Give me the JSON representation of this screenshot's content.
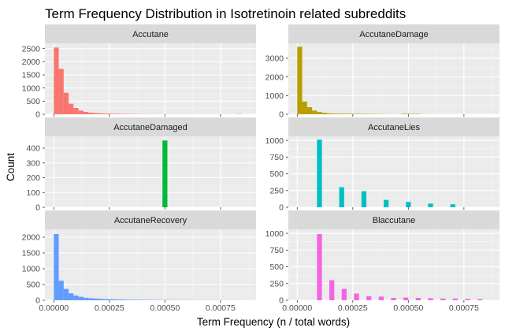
{
  "chart_data": {
    "type": "histogram-facets",
    "title": "Term Frequency Distribution in Isotretinoin related subreddits",
    "xlabel": "Term Frequency (n / total words)",
    "ylabel": "Count",
    "xlim": [
      -4e-05,
      0.00091
    ],
    "x_ticks": [
      0.0,
      0.00025,
      0.0005,
      0.00075
    ],
    "x_tick_labels": [
      "0.00000",
      "0.00025",
      "0.00050",
      "0.00075"
    ],
    "bin_width": 2.22e-05,
    "grid": true,
    "background": "#EBEBEB",
    "strip_background": "#D9D9D9",
    "facets": [
      {
        "name": "Accutane",
        "color": "#F8766D",
        "ylim": [
          0,
          2700
        ],
        "y_ticks": [
          0,
          500,
          1000,
          1500,
          2000,
          2500
        ],
        "bins": [
          {
            "x": 1.11e-05,
            "count": 2540
          },
          {
            "x": 3.33e-05,
            "count": 1730
          },
          {
            "x": 5.56e-05,
            "count": 820
          },
          {
            "x": 7.78e-05,
            "count": 400
          },
          {
            "x": 0.0001,
            "count": 240
          },
          {
            "x": 0.0001222,
            "count": 140
          },
          {
            "x": 0.0001444,
            "count": 90
          },
          {
            "x": 0.0001667,
            "count": 60
          },
          {
            "x": 0.0001889,
            "count": 45
          },
          {
            "x": 0.0002111,
            "count": 35
          },
          {
            "x": 0.0002333,
            "count": 28
          },
          {
            "x": 0.0002556,
            "count": 22
          },
          {
            "x": 0.0002778,
            "count": 18
          },
          {
            "x": 0.0003,
            "count": 15
          },
          {
            "x": 0.0003222,
            "count": 12
          },
          {
            "x": 0.0003444,
            "count": 10
          },
          {
            "x": 0.0003667,
            "count": 9
          },
          {
            "x": 0.0003889,
            "count": 8
          },
          {
            "x": 0.0004111,
            "count": 7
          },
          {
            "x": 0.0004333,
            "count": 6
          },
          {
            "x": 0.0004556,
            "count": 6
          },
          {
            "x": 0.0004778,
            "count": 5
          },
          {
            "x": 0.0005,
            "count": 5
          },
          {
            "x": 0.0005222,
            "count": 4
          },
          {
            "x": 0.0005444,
            "count": 4
          },
          {
            "x": 0.0005667,
            "count": 4
          },
          {
            "x": 0.0005889,
            "count": 3
          },
          {
            "x": 0.0006111,
            "count": 3
          },
          {
            "x": 0.0006333,
            "count": 3
          },
          {
            "x": 0.0006556,
            "count": 3
          },
          {
            "x": 0.0006778,
            "count": 2
          },
          {
            "x": 0.0007,
            "count": 2
          },
          {
            "x": 0.0007222,
            "count": 2
          },
          {
            "x": 0.0007444,
            "count": 2
          },
          {
            "x": 0.0007667,
            "count": 2
          },
          {
            "x": 0.0007889,
            "count": 1
          },
          {
            "x": 0.0008111,
            "count": 1
          },
          {
            "x": 0.0008333,
            "count": 12
          }
        ]
      },
      {
        "name": "AccutaneDamage",
        "color": "#B79F00",
        "ylim": [
          0,
          3800
        ],
        "y_ticks": [
          0,
          1000,
          2000,
          3000
        ],
        "bins": [
          {
            "x": 1.11e-05,
            "count": 3620
          },
          {
            "x": 3.33e-05,
            "count": 680
          },
          {
            "x": 5.56e-05,
            "count": 380
          },
          {
            "x": 7.78e-05,
            "count": 200
          },
          {
            "x": 0.0001,
            "count": 120
          },
          {
            "x": 0.0001222,
            "count": 80
          },
          {
            "x": 0.0001444,
            "count": 50
          },
          {
            "x": 0.0001667,
            "count": 40
          },
          {
            "x": 0.0001889,
            "count": 35
          },
          {
            "x": 0.0002111,
            "count": 30
          },
          {
            "x": 0.0002333,
            "count": 28
          },
          {
            "x": 0.0002556,
            "count": 25
          },
          {
            "x": 0.0002778,
            "count": 22
          },
          {
            "x": 0.0003,
            "count": 20
          },
          {
            "x": 0.0003222,
            "count": 18
          },
          {
            "x": 0.0003444,
            "count": 15
          },
          {
            "x": 0.0003667,
            "count": 12
          },
          {
            "x": 0.0003889,
            "count": 10
          },
          {
            "x": 0.0004111,
            "count": 8
          },
          {
            "x": 0.0004333,
            "count": 5
          },
          {
            "x": 0.0004556,
            "count": 4
          },
          {
            "x": 0.0004778,
            "count": 25
          },
          {
            "x": 0.0005,
            "count": 25
          },
          {
            "x": 0.0005222,
            "count": 20
          },
          {
            "x": 0.0005444,
            "count": 20
          },
          {
            "x": 0.0005667,
            "count": 3
          },
          {
            "x": 0.0005889,
            "count": 3
          },
          {
            "x": 0.0006111,
            "count": 2
          },
          {
            "x": 0.0006333,
            "count": 2
          },
          {
            "x": 0.0006556,
            "count": 2
          },
          {
            "x": 0.0006778,
            "count": 2
          },
          {
            "x": 0.0007,
            "count": 2
          },
          {
            "x": 0.0007222,
            "count": 1
          },
          {
            "x": 0.0007444,
            "count": 1
          },
          {
            "x": 0.0007667,
            "count": 1
          },
          {
            "x": 0.0007889,
            "count": 1
          },
          {
            "x": 0.0008111,
            "count": 1
          },
          {
            "x": 0.0008333,
            "count": 1
          }
        ]
      },
      {
        "name": "AccutaneDamaged",
        "color": "#00BA38",
        "ylim": [
          0,
          480
        ],
        "y_ticks": [
          0,
          100,
          200,
          300,
          400
        ],
        "bins": [
          {
            "x": 0.0005,
            "count": 452
          }
        ]
      },
      {
        "name": "AccutaneLies",
        "color": "#00BFC4",
        "ylim": [
          0,
          1060
        ],
        "y_ticks": [
          0,
          250,
          500,
          750,
          1000
        ],
        "bins": [
          {
            "x": 0.0001,
            "count": 1010
          },
          {
            "x": 0.0002,
            "count": 300
          },
          {
            "x": 0.0003,
            "count": 240
          },
          {
            "x": 0.0004,
            "count": 110
          },
          {
            "x": 0.0005,
            "count": 80
          },
          {
            "x": 0.0006,
            "count": 55
          },
          {
            "x": 0.0007,
            "count": 45
          }
        ]
      },
      {
        "name": "AccutaneRecovery",
        "color": "#619CFF",
        "ylim": [
          0,
          2250
        ],
        "y_ticks": [
          0,
          500,
          1000,
          1500,
          2000
        ],
        "bins": [
          {
            "x": 1.11e-05,
            "count": 2100
          },
          {
            "x": 3.33e-05,
            "count": 620
          },
          {
            "x": 5.56e-05,
            "count": 360
          },
          {
            "x": 7.78e-05,
            "count": 220
          },
          {
            "x": 0.0001,
            "count": 150
          },
          {
            "x": 0.0001222,
            "count": 110
          },
          {
            "x": 0.0001444,
            "count": 80
          },
          {
            "x": 0.0001667,
            "count": 65
          },
          {
            "x": 0.0001889,
            "count": 55
          },
          {
            "x": 0.0002111,
            "count": 45
          },
          {
            "x": 0.0002333,
            "count": 38
          },
          {
            "x": 0.0002556,
            "count": 32
          },
          {
            "x": 0.0002778,
            "count": 28
          },
          {
            "x": 0.0003,
            "count": 24
          },
          {
            "x": 0.0003222,
            "count": 20
          },
          {
            "x": 0.0003444,
            "count": 18
          },
          {
            "x": 0.0003667,
            "count": 15
          },
          {
            "x": 0.0003889,
            "count": 14
          },
          {
            "x": 0.0004111,
            "count": 12
          },
          {
            "x": 0.0004333,
            "count": 11
          },
          {
            "x": 0.0004556,
            "count": 10
          },
          {
            "x": 0.0004778,
            "count": 9
          },
          {
            "x": 0.0005,
            "count": 9
          },
          {
            "x": 0.0005222,
            "count": 8
          },
          {
            "x": 0.0005444,
            "count": 7
          },
          {
            "x": 0.0005667,
            "count": 7
          },
          {
            "x": 0.0005889,
            "count": 6
          },
          {
            "x": 0.0006111,
            "count": 6
          },
          {
            "x": 0.0006333,
            "count": 5
          },
          {
            "x": 0.0006556,
            "count": 5
          },
          {
            "x": 0.0006778,
            "count": 5
          },
          {
            "x": 0.0007,
            "count": 4
          },
          {
            "x": 0.0007222,
            "count": 4
          },
          {
            "x": 0.0007444,
            "count": 4
          },
          {
            "x": 0.0007667,
            "count": 3
          },
          {
            "x": 0.0007889,
            "count": 3
          },
          {
            "x": 0.0008111,
            "count": 3
          },
          {
            "x": 0.0008333,
            "count": 2
          }
        ]
      },
      {
        "name": "Blaccutane",
        "color": "#F564E3",
        "ylim": [
          0,
          1060
        ],
        "y_ticks": [
          0,
          250,
          500,
          750,
          1000
        ],
        "bins": [
          {
            "x": 0.0001,
            "count": 990
          },
          {
            "x": 0.0001556,
            "count": 300
          },
          {
            "x": 0.0002111,
            "count": 170
          },
          {
            "x": 0.0002667,
            "count": 100
          },
          {
            "x": 0.0003222,
            "count": 60
          },
          {
            "x": 0.0003778,
            "count": 55
          },
          {
            "x": 0.0004333,
            "count": 35
          },
          {
            "x": 0.0004889,
            "count": 40
          },
          {
            "x": 0.0005444,
            "count": 35
          },
          {
            "x": 0.0006,
            "count": 30
          },
          {
            "x": 0.0006556,
            "count": 25
          },
          {
            "x": 0.0007111,
            "count": 25
          },
          {
            "x": 0.0007667,
            "count": 20
          },
          {
            "x": 0.0008222,
            "count": 18
          }
        ]
      }
    ]
  }
}
